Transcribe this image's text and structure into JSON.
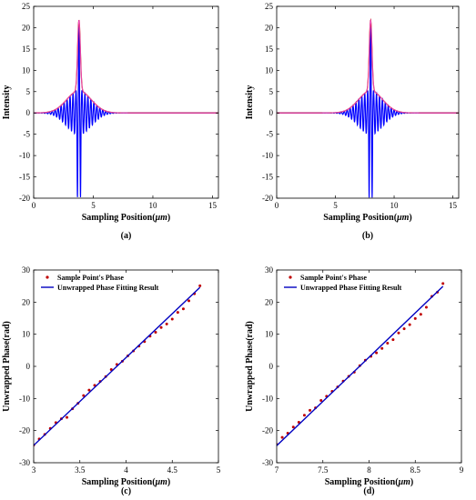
{
  "chart_data": [
    {
      "type": "line",
      "caption": "(a)",
      "xlabel": "Sampling Position(",
      "xlabel_unit": "μm",
      "xlabel_close": ")",
      "ylabel": "Intensity",
      "xlim": [
        0,
        15.5
      ],
      "ylim": [
        -20,
        25
      ],
      "xticks": [
        0,
        5,
        10,
        15
      ],
      "yticks": [
        -20,
        -15,
        -10,
        -5,
        0,
        5,
        10,
        15,
        20,
        25
      ],
      "peak_x": 3.8,
      "series": [
        {
          "kind": "signal",
          "color": "#0000ff",
          "peak": 21.8,
          "trough": -20,
          "envelope": 5.2,
          "period": 0.25,
          "width": 0.9
        },
        {
          "kind": "envelope",
          "color": "#c00000"
        },
        {
          "kind": "envelope",
          "color": "#ff66ff"
        }
      ]
    },
    {
      "type": "line",
      "caption": "(b)",
      "xlabel": "Sampling Position(",
      "xlabel_unit": "μm",
      "xlabel_close": ")",
      "ylabel": "Intensity",
      "xlim": [
        0,
        15.5
      ],
      "ylim": [
        -20,
        25
      ],
      "xticks": [
        0,
        5,
        10,
        15
      ],
      "yticks": [
        -20,
        -15,
        -10,
        -5,
        0,
        5,
        10,
        15,
        20,
        25
      ],
      "peak_x": 8.0,
      "series": [
        {
          "kind": "signal",
          "color": "#0000ff",
          "peak": 21.8,
          "trough": -20,
          "envelope": 5.2,
          "period": 0.25,
          "width": 0.9
        },
        {
          "kind": "envelope",
          "color": "#c00000"
        },
        {
          "kind": "envelope",
          "color": "#ff66ff"
        }
      ]
    },
    {
      "type": "scatter",
      "caption": "(c)",
      "xlabel": "Sampling Position(",
      "xlabel_unit": "μm",
      "xlabel_close": ")",
      "ylabel": "Unwrapped Phase(rad)",
      "xlim": [
        3,
        5
      ],
      "ylim": [
        -30,
        30
      ],
      "xticks": [
        3,
        3.5,
        4,
        4.5,
        5
      ],
      "yticks": [
        -30,
        -20,
        -10,
        0,
        10,
        20,
        30
      ],
      "legend_placement": "top-left",
      "series": [
        {
          "name": "Sample Point's Phase",
          "kind": "points",
          "color": "#c00000",
          "x": [
            3.0,
            3.06,
            3.12,
            3.18,
            3.24,
            3.3,
            3.36,
            3.42,
            3.48,
            3.54,
            3.6,
            3.66,
            3.72,
            3.78,
            3.84,
            3.9,
            3.96,
            4.02,
            4.08,
            4.14,
            4.2,
            4.26,
            4.32,
            4.38,
            4.44,
            4.5,
            4.56,
            4.62,
            4.68,
            4.74,
            4.8
          ],
          "y": [
            -24.5,
            -22.6,
            -21.2,
            -19.3,
            -17.5,
            -16.3,
            -15.9,
            -13.2,
            -11.5,
            -9.1,
            -7.4,
            -5.9,
            -4.7,
            -3.2,
            -1.0,
            0.6,
            1.6,
            3.3,
            4.8,
            6.3,
            7.7,
            9.4,
            10.6,
            12.1,
            13.2,
            14.7,
            16.8,
            17.9,
            20.4,
            22.6,
            25.1
          ]
        },
        {
          "name": "Unwrapped Phase Fitting Result",
          "kind": "fit",
          "color": "#0000c0",
          "x": [
            3.0,
            4.8
          ],
          "y": [
            -24.6,
            24.6
          ]
        }
      ]
    },
    {
      "type": "scatter",
      "caption": "(d)",
      "xlabel": "Sampling Position(",
      "xlabel_unit": "μm",
      "xlabel_close": ")",
      "ylabel": "Unwrapped Phase(rad)",
      "xlim": [
        7,
        9
      ],
      "ylim": [
        -30,
        30
      ],
      "xticks": [
        7,
        7.5,
        8,
        8.5,
        9
      ],
      "yticks": [
        -30,
        -20,
        -10,
        0,
        10,
        20,
        30
      ],
      "legend_placement": "top-left",
      "series": [
        {
          "name": "Sample Point's Phase",
          "kind": "points",
          "color": "#c00000",
          "x": [
            7.0,
            7.06,
            7.12,
            7.18,
            7.24,
            7.3,
            7.36,
            7.42,
            7.48,
            7.54,
            7.6,
            7.66,
            7.72,
            7.78,
            7.84,
            7.9,
            7.96,
            8.02,
            8.08,
            8.14,
            8.2,
            8.26,
            8.32,
            8.38,
            8.44,
            8.5,
            8.56,
            8.62,
            8.68,
            8.74,
            8.8
          ],
          "y": [
            -24.3,
            -22.1,
            -20.8,
            -18.9,
            -17.4,
            -15.2,
            -13.7,
            -12.9,
            -10.6,
            -9.3,
            -7.8,
            -6.4,
            -4.6,
            -3.1,
            -1.8,
            0.2,
            1.9,
            3.1,
            4.2,
            5.6,
            7.2,
            8.3,
            10.4,
            11.7,
            13.0,
            14.9,
            16.2,
            18.4,
            21.8,
            23.1,
            25.8
          ]
        },
        {
          "name": "Unwrapped Phase Fitting Result",
          "kind": "fit",
          "color": "#0000c0",
          "x": [
            7.0,
            8.8
          ],
          "y": [
            -24.7,
            24.9
          ]
        }
      ]
    }
  ]
}
